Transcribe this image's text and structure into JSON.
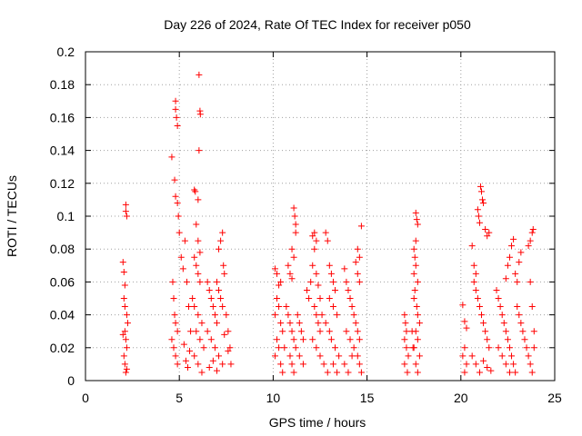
{
  "chart_data": {
    "type": "scatter",
    "title": "Day 226 of 2024, Rate Of TEC Index for receiver p050",
    "xlabel": "GPS time / hours",
    "ylabel": "ROTI / TECUs",
    "xlim": [
      0,
      25
    ],
    "ylim": [
      0,
      0.2
    ],
    "x_ticks": [
      0,
      5,
      10,
      15,
      20,
      25
    ],
    "x_tick_labels": [
      "0",
      "5",
      "10",
      "15",
      "20",
      "25"
    ],
    "y_ticks": [
      0,
      0.02,
      0.04,
      0.06,
      0.08,
      0.1,
      0.12,
      0.14,
      0.16,
      0.18,
      0.2
    ],
    "y_tick_labels": [
      "0",
      "0.02",
      "0.04",
      "0.06",
      "0.08",
      "0.1",
      "0.12",
      "0.14",
      "0.16",
      "0.18",
      "0.2"
    ],
    "grid": true,
    "marker": "+",
    "marker_color": "#ff0000",
    "series": [
      {
        "points": [
          [
            2.0,
            0.072
          ],
          [
            2.05,
            0.066
          ],
          [
            2.1,
            0.058
          ],
          [
            2.15,
            0.107
          ],
          [
            2.15,
            0.103
          ],
          [
            2.2,
            0.1
          ],
          [
            2.05,
            0.05
          ],
          [
            2.1,
            0.045
          ],
          [
            2.2,
            0.04
          ],
          [
            2.1,
            0.03
          ],
          [
            2.15,
            0.025
          ],
          [
            2.2,
            0.02
          ],
          [
            2.05,
            0.015
          ],
          [
            2.1,
            0.01
          ],
          [
            2.2,
            0.007
          ],
          [
            2.15,
            0.005
          ],
          [
            2.25,
            0.035
          ],
          [
            2.0,
            0.028
          ],
          [
            4.6,
            0.136
          ],
          [
            4.8,
            0.17
          ],
          [
            4.8,
            0.165
          ],
          [
            4.85,
            0.16
          ],
          [
            4.9,
            0.155
          ],
          [
            4.75,
            0.122
          ],
          [
            4.8,
            0.112
          ],
          [
            4.9,
            0.108
          ],
          [
            4.95,
            0.1
          ],
          [
            5.0,
            0.09
          ],
          [
            5.1,
            0.075
          ],
          [
            4.65,
            0.06
          ],
          [
            4.7,
            0.05
          ],
          [
            4.75,
            0.04
          ],
          [
            4.8,
            0.035
          ],
          [
            4.9,
            0.03
          ],
          [
            4.6,
            0.025
          ],
          [
            4.7,
            0.02
          ],
          [
            4.8,
            0.015
          ],
          [
            4.9,
            0.01
          ],
          [
            5.2,
            0.068
          ],
          [
            5.3,
            0.085
          ],
          [
            5.4,
            0.06
          ],
          [
            5.5,
            0.045
          ],
          [
            5.6,
            0.03
          ],
          [
            5.25,
            0.022
          ],
          [
            5.35,
            0.012
          ],
          [
            5.45,
            0.008
          ],
          [
            5.55,
            0.018
          ],
          [
            5.8,
            0.116
          ],
          [
            5.85,
            0.115
          ],
          [
            6.0,
            0.11
          ],
          [
            6.05,
            0.186
          ],
          [
            6.1,
            0.164
          ],
          [
            6.12,
            0.162
          ],
          [
            6.05,
            0.14
          ],
          [
            5.9,
            0.095
          ],
          [
            6.0,
            0.085
          ],
          [
            6.1,
            0.078
          ],
          [
            5.8,
            0.075
          ],
          [
            5.9,
            0.07
          ],
          [
            6.0,
            0.065
          ],
          [
            6.1,
            0.06
          ],
          [
            5.7,
            0.05
          ],
          [
            5.8,
            0.045
          ],
          [
            6.0,
            0.04
          ],
          [
            6.2,
            0.035
          ],
          [
            5.9,
            0.03
          ],
          [
            6.1,
            0.025
          ],
          [
            6.3,
            0.02
          ],
          [
            5.8,
            0.015
          ],
          [
            6.0,
            0.01
          ],
          [
            6.2,
            0.005
          ],
          [
            6.5,
            0.06
          ],
          [
            6.6,
            0.055
          ],
          [
            6.7,
            0.05
          ],
          [
            6.8,
            0.045
          ],
          [
            6.9,
            0.04
          ],
          [
            7.0,
            0.035
          ],
          [
            7.1,
            0.08
          ],
          [
            7.2,
            0.085
          ],
          [
            7.3,
            0.09
          ],
          [
            7.35,
            0.07
          ],
          [
            7.4,
            0.065
          ],
          [
            7.0,
            0.06
          ],
          [
            7.1,
            0.055
          ],
          [
            7.2,
            0.05
          ],
          [
            7.3,
            0.045
          ],
          [
            6.5,
            0.03
          ],
          [
            6.7,
            0.025
          ],
          [
            6.9,
            0.02
          ],
          [
            7.1,
            0.015
          ],
          [
            7.3,
            0.01
          ],
          [
            7.5,
            0.04
          ],
          [
            7.6,
            0.03
          ],
          [
            7.7,
            0.02
          ],
          [
            7.75,
            0.01
          ],
          [
            6.6,
            0.008
          ],
          [
            6.8,
            0.012
          ],
          [
            7.0,
            0.006
          ],
          [
            7.4,
            0.028
          ],
          [
            7.6,
            0.018
          ],
          [
            10.1,
            0.068
          ],
          [
            10.2,
            0.065
          ],
          [
            10.3,
            0.058
          ],
          [
            10.4,
            0.06
          ],
          [
            10.2,
            0.05
          ],
          [
            10.3,
            0.045
          ],
          [
            10.1,
            0.04
          ],
          [
            10.4,
            0.035
          ],
          [
            10.5,
            0.03
          ],
          [
            10.2,
            0.025
          ],
          [
            10.3,
            0.02
          ],
          [
            10.1,
            0.015
          ],
          [
            10.4,
            0.01
          ],
          [
            10.5,
            0.005
          ],
          [
            10.6,
            0.02
          ],
          [
            10.8,
            0.07
          ],
          [
            10.9,
            0.065
          ],
          [
            11.0,
            0.062
          ],
          [
            11.1,
            0.105
          ],
          [
            11.15,
            0.1
          ],
          [
            11.2,
            0.095
          ],
          [
            11.2,
            0.09
          ],
          [
            11.0,
            0.08
          ],
          [
            11.1,
            0.075
          ],
          [
            10.7,
            0.045
          ],
          [
            10.8,
            0.04
          ],
          [
            10.9,
            0.035
          ],
          [
            11.0,
            0.03
          ],
          [
            11.1,
            0.025
          ],
          [
            11.2,
            0.02
          ],
          [
            10.9,
            0.015
          ],
          [
            11.0,
            0.01
          ],
          [
            11.1,
            0.005
          ],
          [
            11.3,
            0.04
          ],
          [
            11.4,
            0.035
          ],
          [
            11.5,
            0.03
          ],
          [
            11.6,
            0.025
          ],
          [
            11.4,
            0.015
          ],
          [
            11.6,
            0.01
          ],
          [
            11.8,
            0.055
          ],
          [
            11.9,
            0.05
          ],
          [
            12.0,
            0.06
          ],
          [
            12.1,
            0.088
          ],
          [
            12.2,
            0.09
          ],
          [
            12.3,
            0.085
          ],
          [
            12.2,
            0.08
          ],
          [
            12.1,
            0.07
          ],
          [
            12.3,
            0.065
          ],
          [
            12.4,
            0.058
          ],
          [
            12.5,
            0.05
          ],
          [
            12.2,
            0.045
          ],
          [
            12.3,
            0.04
          ],
          [
            12.4,
            0.035
          ],
          [
            12.5,
            0.03
          ],
          [
            12.1,
            0.025
          ],
          [
            12.3,
            0.02
          ],
          [
            12.5,
            0.015
          ],
          [
            12.7,
            0.01
          ],
          [
            12.9,
            0.005
          ],
          [
            12.6,
            0.04
          ],
          [
            12.8,
            0.035
          ],
          [
            13.0,
            0.03
          ],
          [
            12.8,
            0.09
          ],
          [
            12.9,
            0.085
          ],
          [
            13.0,
            0.07
          ],
          [
            13.1,
            0.065
          ],
          [
            13.2,
            0.06
          ],
          [
            13.3,
            0.055
          ],
          [
            13.0,
            0.05
          ],
          [
            13.2,
            0.045
          ],
          [
            13.4,
            0.04
          ],
          [
            13.1,
            0.025
          ],
          [
            13.3,
            0.02
          ],
          [
            13.5,
            0.015
          ],
          [
            13.2,
            0.01
          ],
          [
            13.4,
            0.005
          ],
          [
            13.8,
            0.068
          ],
          [
            13.9,
            0.06
          ],
          [
            14.0,
            0.055
          ],
          [
            14.1,
            0.05
          ],
          [
            14.2,
            0.045
          ],
          [
            14.3,
            0.04
          ],
          [
            14.4,
            0.072
          ],
          [
            14.5,
            0.08
          ],
          [
            14.6,
            0.075
          ],
          [
            14.7,
            0.094
          ],
          [
            14.5,
            0.065
          ],
          [
            14.6,
            0.06
          ],
          [
            14.4,
            0.035
          ],
          [
            14.5,
            0.03
          ],
          [
            14.6,
            0.025
          ],
          [
            14.3,
            0.02
          ],
          [
            14.5,
            0.015
          ],
          [
            14.6,
            0.01
          ],
          [
            14.7,
            0.005
          ],
          [
            13.9,
            0.03
          ],
          [
            14.1,
            0.025
          ],
          [
            14.2,
            0.015
          ],
          [
            13.8,
            0.01
          ],
          [
            14.0,
            0.005
          ],
          [
            17.0,
            0.04
          ],
          [
            17.05,
            0.035
          ],
          [
            17.1,
            0.03
          ],
          [
            17.0,
            0.025
          ],
          [
            17.1,
            0.02
          ],
          [
            17.2,
            0.015
          ],
          [
            17.0,
            0.01
          ],
          [
            17.15,
            0.005
          ],
          [
            17.6,
            0.102
          ],
          [
            17.65,
            0.098
          ],
          [
            17.7,
            0.095
          ],
          [
            17.6,
            0.085
          ],
          [
            17.5,
            0.08
          ],
          [
            17.55,
            0.075
          ],
          [
            17.6,
            0.07
          ],
          [
            17.5,
            0.065
          ],
          [
            17.7,
            0.06
          ],
          [
            17.55,
            0.055
          ],
          [
            17.5,
            0.05
          ],
          [
            17.65,
            0.045
          ],
          [
            17.7,
            0.04
          ],
          [
            17.8,
            0.035
          ],
          [
            17.6,
            0.03
          ],
          [
            17.7,
            0.025
          ],
          [
            17.5,
            0.02
          ],
          [
            17.8,
            0.015
          ],
          [
            17.6,
            0.01
          ],
          [
            17.7,
            0.005
          ],
          [
            17.4,
            0.03
          ],
          [
            17.45,
            0.02
          ],
          [
            20.1,
            0.046
          ],
          [
            20.2,
            0.036
          ],
          [
            20.3,
            0.032
          ],
          [
            20.2,
            0.02
          ],
          [
            20.1,
            0.015
          ],
          [
            20.3,
            0.01
          ],
          [
            20.2,
            0.005
          ],
          [
            20.6,
            0.082
          ],
          [
            20.7,
            0.07
          ],
          [
            20.8,
            0.065
          ],
          [
            20.9,
            0.104
          ],
          [
            20.95,
            0.1
          ],
          [
            21.0,
            0.096
          ],
          [
            21.05,
            0.118
          ],
          [
            21.1,
            0.115
          ],
          [
            21.15,
            0.11
          ],
          [
            21.2,
            0.108
          ],
          [
            21.3,
            0.092
          ],
          [
            21.4,
            0.088
          ],
          [
            21.5,
            0.09
          ],
          [
            20.7,
            0.06
          ],
          [
            20.8,
            0.055
          ],
          [
            20.9,
            0.05
          ],
          [
            21.0,
            0.045
          ],
          [
            21.1,
            0.04
          ],
          [
            21.2,
            0.035
          ],
          [
            21.3,
            0.03
          ],
          [
            21.4,
            0.025
          ],
          [
            21.5,
            0.02
          ],
          [
            20.6,
            0.015
          ],
          [
            20.8,
            0.01
          ],
          [
            21.0,
            0.005
          ],
          [
            21.2,
            0.012
          ],
          [
            21.4,
            0.008
          ],
          [
            21.6,
            0.006
          ],
          [
            21.9,
            0.055
          ],
          [
            22.0,
            0.05
          ],
          [
            22.1,
            0.045
          ],
          [
            22.2,
            0.04
          ],
          [
            22.3,
            0.035
          ],
          [
            22.4,
            0.03
          ],
          [
            22.5,
            0.025
          ],
          [
            22.6,
            0.02
          ],
          [
            22.7,
            0.015
          ],
          [
            22.8,
            0.01
          ],
          [
            22.9,
            0.005
          ],
          [
            22.0,
            0.02
          ],
          [
            22.2,
            0.015
          ],
          [
            22.4,
            0.01
          ],
          [
            22.6,
            0.005
          ],
          [
            22.4,
            0.062
          ],
          [
            22.5,
            0.07
          ],
          [
            22.6,
            0.075
          ],
          [
            22.7,
            0.082
          ],
          [
            22.8,
            0.086
          ],
          [
            22.9,
            0.065
          ],
          [
            23.0,
            0.06
          ],
          [
            23.1,
            0.072
          ],
          [
            23.2,
            0.078
          ],
          [
            23.0,
            0.045
          ],
          [
            23.1,
            0.04
          ],
          [
            23.2,
            0.035
          ],
          [
            23.3,
            0.03
          ],
          [
            23.4,
            0.025
          ],
          [
            23.5,
            0.02
          ],
          [
            23.6,
            0.015
          ],
          [
            23.7,
            0.01
          ],
          [
            23.8,
            0.005
          ],
          [
            23.6,
            0.082
          ],
          [
            23.7,
            0.085
          ],
          [
            23.8,
            0.09
          ],
          [
            23.85,
            0.092
          ],
          [
            23.7,
            0.06
          ],
          [
            23.8,
            0.045
          ],
          [
            23.9,
            0.03
          ],
          [
            23.9,
            0.02
          ]
        ]
      }
    ]
  }
}
